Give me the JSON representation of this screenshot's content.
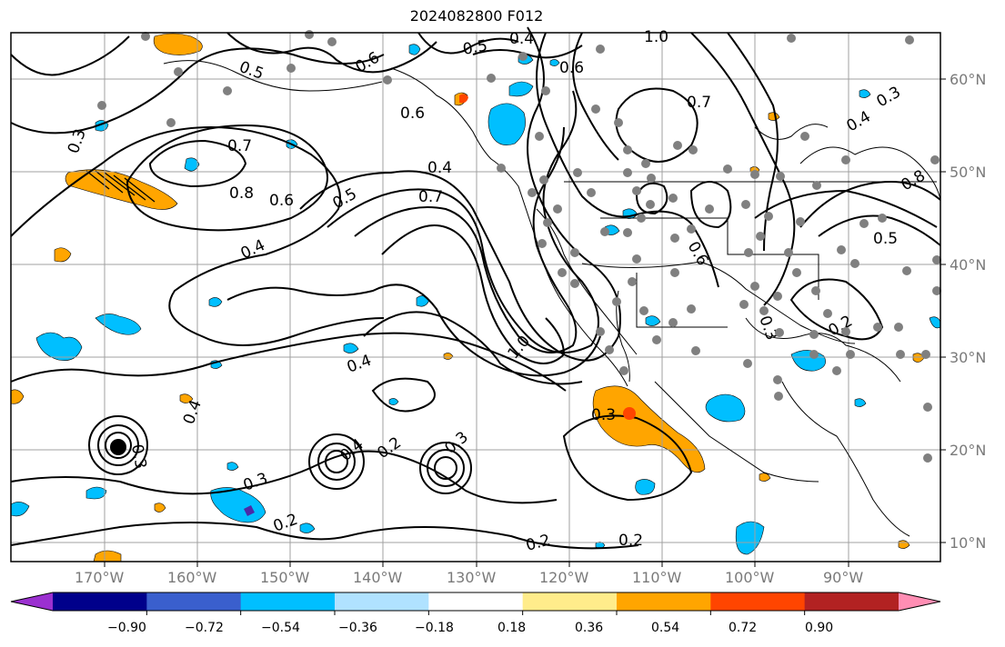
{
  "title": "2024082800 F012",
  "lon_labels": [
    "170°W",
    "160°W",
    "150°W",
    "140°W",
    "130°W",
    "120°W",
    "110°W",
    "100°W",
    "90°W"
  ],
  "lat_labels": [
    "60°N",
    "50°N",
    "40°N",
    "30°N",
    "20°N",
    "10°N"
  ],
  "colorbar": {
    "colors": [
      "#9b30d0",
      "#00008b",
      "#3a5fcd",
      "#00bfff",
      "#b0e2ff",
      "#ffffff",
      "#ffec8b",
      "#ffa500",
      "#ff4500",
      "#b22222",
      "#ff8eb4"
    ],
    "tick_labels": [
      "−0.90",
      "−0.72",
      "−0.54",
      "−0.36",
      "−0.18",
      "0.18",
      "0.36",
      "0.54",
      "0.72",
      "0.90"
    ]
  },
  "contour_labels": [
    "0.4",
    "1.0",
    "0.5",
    "0.5",
    "0.6",
    "0.3",
    "0.7",
    "0.8",
    "0.6",
    "0.6",
    "0.4",
    "0.5",
    "0.7",
    "0.4",
    "1.0",
    "0.4",
    "0.3",
    "0.4",
    "0.3",
    "0.4",
    "0.3",
    "0.2",
    "0.3",
    "0.2",
    "0.2",
    "0.3",
    "0.2",
    "0.4",
    "0.6",
    "0.7",
    "0.5",
    "0.6",
    "0.8",
    "0.3",
    "0.2"
  ],
  "colors": {
    "contour": "#000000",
    "station": "#808080",
    "positive": "#ffa500",
    "negative": "#00bfff",
    "grid": "#a0a0a0"
  }
}
